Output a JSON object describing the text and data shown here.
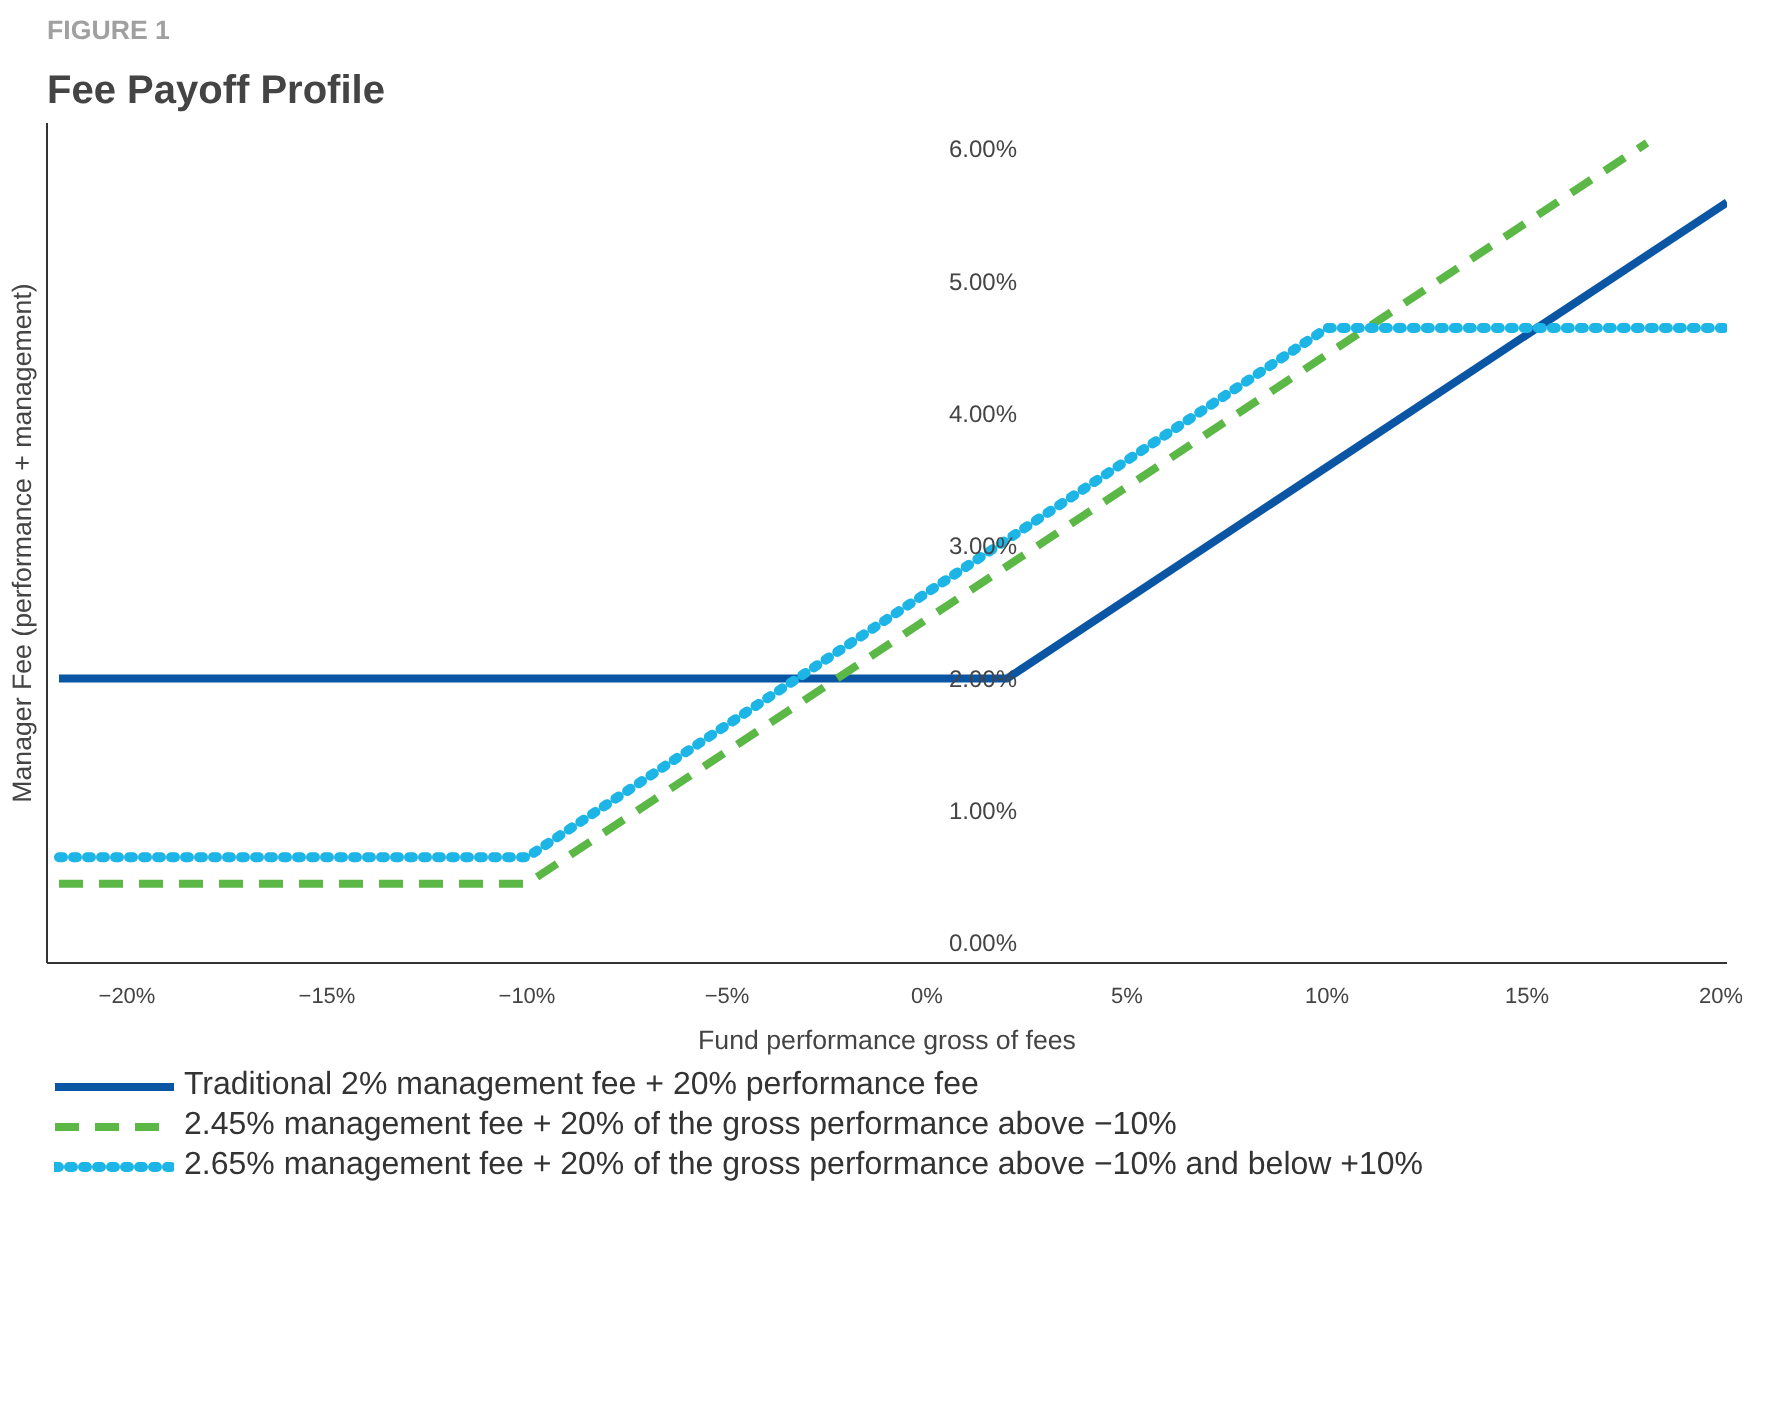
{
  "chart_data": {
    "type": "line",
    "subtitle": "FIGURE 1",
    "title": "Fee Payoff Profile",
    "xlabel": "Fund performance gross of fees",
    "ylabel": "Manager Fee (performance + management)",
    "xlim": [
      -22,
      20
    ],
    "ylim": [
      -0.15,
      6.2
    ],
    "xticks": [
      {
        "value": -20,
        "label": "−20%"
      },
      {
        "value": -15,
        "label": "−15%"
      },
      {
        "value": -10,
        "label": "−10%"
      },
      {
        "value": -5,
        "label": "−5%"
      },
      {
        "value": 0,
        "label": "0%"
      },
      {
        "value": 5,
        "label": "5%"
      },
      {
        "value": 10,
        "label": "10%"
      },
      {
        "value": 15,
        "label": "15%"
      },
      {
        "value": 20,
        "label": "20%"
      }
    ],
    "yticks": [
      {
        "value": 0,
        "label": "0.00%"
      },
      {
        "value": 1,
        "label": "1.00%"
      },
      {
        "value": 2,
        "label": "2.00%"
      },
      {
        "value": 3,
        "label": "3.00%"
      },
      {
        "value": 4,
        "label": "4.00%"
      },
      {
        "value": 5,
        "label": "5.00%"
      },
      {
        "value": 6,
        "label": "6.00%"
      }
    ],
    "grid": false,
    "legend": "bottom",
    "marker": "none",
    "series": [
      {
        "name": "Traditional 2% management fee + 20% performance fee",
        "color": "#0b56a4",
        "line_style": "solid",
        "x": [
          -21.7,
          2,
          20
        ],
        "values": [
          2,
          2,
          5.6
        ]
      },
      {
        "name": "2.45% management fee + 20% of the gross performance above −10%",
        "color": "#5cb846",
        "line_style": "dashed",
        "x": [
          -21.7,
          -10,
          18
        ],
        "values": [
          0.45,
          0.45,
          6.05
        ]
      },
      {
        "name": "2.65% management fee + 20% of the gross performance above −10% and below +10%",
        "color": "#1cb5e6",
        "line_style": "dotted",
        "x": [
          -21.7,
          -10,
          10,
          20
        ],
        "values": [
          0.65,
          0.65,
          4.65,
          4.65
        ]
      }
    ]
  }
}
